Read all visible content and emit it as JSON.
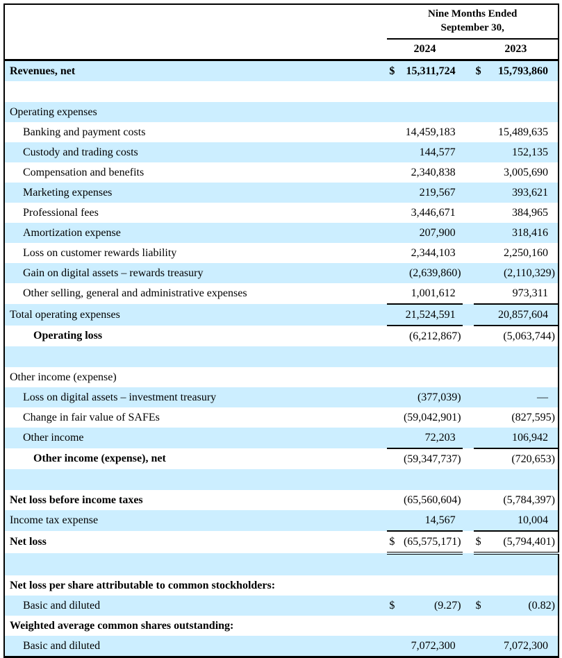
{
  "table": {
    "stripe_color": "#cceeff",
    "border_color": "#000000",
    "header": {
      "period_line1": "Nine Months Ended",
      "period_line2": "September 30,",
      "years": [
        "2024",
        "2023"
      ]
    },
    "rows": [
      {
        "label": "Revenues, net",
        "bold": true,
        "indent": 0,
        "bg": "blue",
        "d1": "$",
        "v1": "15,311,724",
        "d2": "$",
        "v2": "15,793,860",
        "values_bold": true
      },
      {
        "blank": true,
        "bg": "white"
      },
      {
        "label": "Operating expenses",
        "bold": false,
        "indent": 0,
        "bg": "blue"
      },
      {
        "label": "Banking and payment costs",
        "indent": 1,
        "bg": "white",
        "v1": "14,459,183",
        "v2": "15,489,635"
      },
      {
        "label": "Custody and trading costs",
        "indent": 1,
        "bg": "blue",
        "v1": "144,577",
        "v2": "152,135"
      },
      {
        "label": "Compensation and benefits",
        "indent": 1,
        "bg": "white",
        "v1": "2,340,838",
        "v2": "3,005,690"
      },
      {
        "label": "Marketing expenses",
        "indent": 1,
        "bg": "blue",
        "v1": "219,567",
        "v2": "393,621"
      },
      {
        "label": "Professional fees",
        "indent": 1,
        "bg": "white",
        "v1": "3,446,671",
        "v2": "384,965"
      },
      {
        "label": "Amortization expense",
        "indent": 1,
        "bg": "blue",
        "v1": "207,900",
        "v2": "318,416"
      },
      {
        "label": "Loss on customer rewards liability",
        "indent": 1,
        "bg": "white",
        "v1": "2,344,103",
        "v2": "2,250,160"
      },
      {
        "label": "Gain on digital assets – rewards treasury",
        "indent": 1,
        "bg": "blue",
        "v1": "(2,639,860)",
        "v2": "(2,110,329)"
      },
      {
        "label": "Other selling, general and administrative expenses",
        "indent": 1,
        "bg": "white",
        "v1": "1,001,612",
        "v2": "973,311",
        "rule": "single"
      },
      {
        "label": "Total operating expenses",
        "indent": 0,
        "bg": "blue",
        "v1": "21,524,591",
        "v2": "20,857,604",
        "rule": "single"
      },
      {
        "label": "Operating loss",
        "bold": true,
        "indent": 2,
        "bg": "white",
        "v1": "(6,212,867)",
        "v2": "(5,063,744)"
      },
      {
        "blank": true,
        "bg": "blue"
      },
      {
        "label": "Other income (expense)",
        "indent": 0,
        "bg": "white"
      },
      {
        "label": "Loss on digital assets – investment treasury",
        "indent": 1,
        "bg": "blue",
        "v1": "(377,039)",
        "v2": "—"
      },
      {
        "label": "Change in fair value of SAFEs",
        "indent": 1,
        "bg": "white",
        "v1": "(59,042,901)",
        "v2": "(827,595)"
      },
      {
        "label": "Other income",
        "indent": 1,
        "bg": "blue",
        "v1": "72,203",
        "v2": "106,942",
        "rule": "single"
      },
      {
        "label": "Other income (expense), net",
        "bold": true,
        "indent": 2,
        "bg": "white",
        "v1": "(59,347,737)",
        "v2": "(720,653)"
      },
      {
        "blank": true,
        "bg": "blue"
      },
      {
        "label": "Net loss before income taxes",
        "bold": true,
        "indent": 0,
        "bg": "white",
        "v1": "(65,560,604)",
        "v2": "(5,784,397)"
      },
      {
        "label": "Income tax expense",
        "indent": 0,
        "bg": "blue",
        "v1": "14,567",
        "v2": "10,004",
        "rule": "single"
      },
      {
        "label": "Net loss",
        "bold": true,
        "indent": 0,
        "bg": "white",
        "d1": "$",
        "v1": "(65,575,171)",
        "d2": "$",
        "v2": "(5,794,401)",
        "rule": "double"
      },
      {
        "blank": true,
        "bg": "blue"
      },
      {
        "label": "Net loss per share attributable to common stockholders:",
        "bold": true,
        "indent": 0,
        "bg": "white"
      },
      {
        "label": "Basic and diluted",
        "indent": 1,
        "bg": "blue",
        "d1": "$",
        "v1": "(9.27)",
        "d2": "$",
        "v2": "(0.82)"
      },
      {
        "label": "Weighted average common shares outstanding:",
        "bold": true,
        "indent": 0,
        "bg": "white"
      },
      {
        "label": "Basic and diluted",
        "indent": 1,
        "bg": "blue",
        "v1": "7,072,300",
        "v2": "7,072,300"
      }
    ]
  }
}
